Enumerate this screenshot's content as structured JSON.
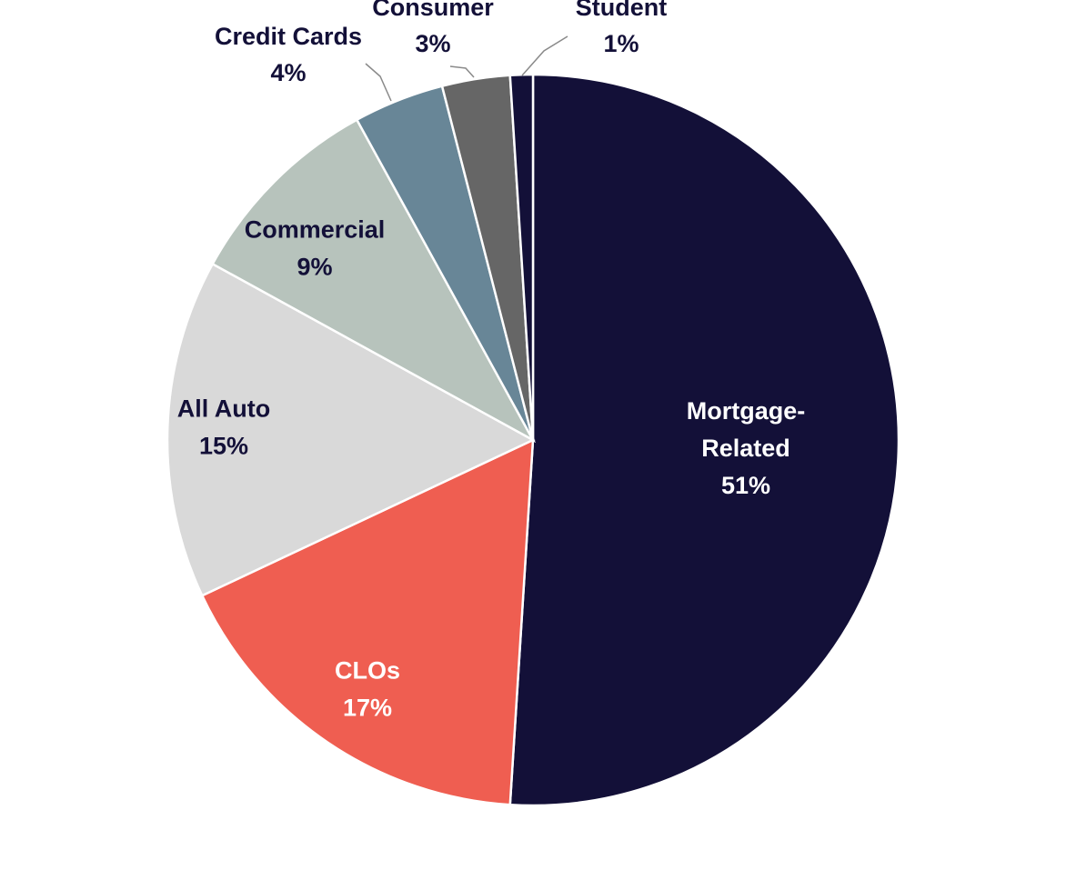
{
  "chart_data": {
    "type": "pie",
    "start_angle_deg": 0,
    "direction": "clockwise",
    "legend": "none",
    "slices": [
      {
        "name": "Mortgage-Related",
        "name_lines": [
          "Mortgage-",
          "Related"
        ],
        "value": 51,
        "value_label": "51%",
        "color": "#131038",
        "text_color": "#ffffff",
        "label_placement": "inside"
      },
      {
        "name": "CLOs",
        "name_lines": [
          "CLOs"
        ],
        "value": 17,
        "value_label": "17%",
        "color": "#ef5e51",
        "text_color": "#ffffff",
        "label_placement": "inside"
      },
      {
        "name": "All Auto",
        "name_lines": [
          "All Auto"
        ],
        "value": 15,
        "value_label": "15%",
        "color": "#d9d9d9",
        "text_color": "#131038",
        "label_placement": "inside"
      },
      {
        "name": "Commercial",
        "name_lines": [
          "Commercial"
        ],
        "value": 9,
        "value_label": "9%",
        "color": "#b7c3bc",
        "text_color": "#131038",
        "label_placement": "inside"
      },
      {
        "name": "Credit Cards",
        "name_lines": [
          "Credit Cards"
        ],
        "value": 4,
        "value_label": "4%",
        "color": "#688697",
        "text_color": "#131038",
        "label_placement": "outside"
      },
      {
        "name": "Consumer",
        "name_lines": [
          "Consumer"
        ],
        "value": 3,
        "value_label": "3%",
        "color": "#666666",
        "text_color": "#131038",
        "label_placement": "outside"
      },
      {
        "name": "Student",
        "name_lines": [
          "Student"
        ],
        "value": 1,
        "value_label": "1%",
        "color": "#131038",
        "text_color": "#131038",
        "label_placement": "outside"
      }
    ]
  }
}
